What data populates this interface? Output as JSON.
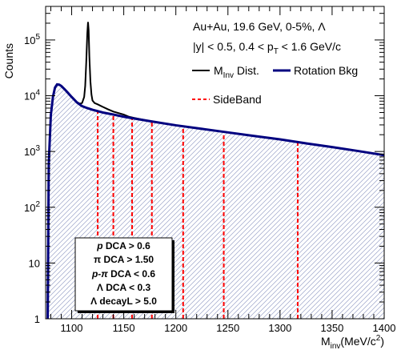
{
  "chart_data": {
    "type": "line",
    "ylabel": "Counts",
    "xlabel": {
      "main": "M",
      "sub": "inv",
      "unit_pre": "(MeV/c",
      "unit_sup": "2",
      "unit_post": ")"
    },
    "x_range": [
      1075,
      1400
    ],
    "y_range": [
      1,
      400000
    ],
    "y_scale": "log",
    "x_ticks": [
      {
        "value": 1100,
        "label": "1100"
      },
      {
        "value": 1150,
        "label": "1150"
      },
      {
        "value": 1200,
        "label": "1200"
      },
      {
        "value": 1250,
        "label": "1250"
      },
      {
        "value": 1300,
        "label": "1300"
      },
      {
        "value": 1350,
        "label": "1350"
      },
      {
        "value": 1400,
        "label": "1400"
      }
    ],
    "y_ticks": [
      {
        "value": 1,
        "base": "1",
        "exp": ""
      },
      {
        "value": 10,
        "base": "10",
        "exp": ""
      },
      {
        "value": 100,
        "base": "10",
        "exp": "2"
      },
      {
        "value": 1000,
        "base": "10",
        "exp": "3"
      },
      {
        "value": 10000,
        "base": "10",
        "exp": "4"
      },
      {
        "value": 100000,
        "base": "10",
        "exp": "5"
      }
    ],
    "info": {
      "line1": "Au+Au, 19.6 GeV, 0-5%, Λ",
      "line2_pre": "|y| < 0.5, 0.4 < p",
      "line2_sub": "T",
      "line2_post": " < 1.6 GeV/c"
    },
    "legend": [
      {
        "label_main": "M",
        "label_sub": "Inv",
        "label_post": " Dist.",
        "color": "#000000",
        "style": "solid"
      },
      {
        "label_main": "Rotation Bkg",
        "label_sub": "",
        "label_post": "",
        "color": "#00007f",
        "style": "solid"
      },
      {
        "label_main": "SideBand",
        "label_sub": "",
        "label_post": "",
        "color": "#ff0000",
        "style": "dashed"
      }
    ],
    "cuts": [
      {
        "pre": "p",
        "post": " DCA > 0.6"
      },
      {
        "pre": "π",
        "post": " DCA > 1.50"
      },
      {
        "pre": "p-π",
        "post": " DCA < 0.6"
      },
      {
        "pre": "Λ",
        "post": " DCA < 0.3"
      },
      {
        "pre": "Λ",
        "post": " decayL > 5.0"
      }
    ],
    "sideband_x": [
      1125,
      1140,
      1158,
      1177,
      1207,
      1246,
      1317
    ],
    "series": [
      {
        "key": "rotation",
        "x": [
          1077,
          1078,
          1080,
          1082,
          1084,
          1086,
          1088,
          1090,
          1093,
          1096,
          1100,
          1105,
          1110,
          1115,
          1120,
          1130,
          1140,
          1150,
          1175,
          1200,
          1225,
          1250,
          1275,
          1300,
          1325,
          1350,
          1375,
          1400
        ],
        "y": [
          1,
          600,
          4500,
          9500,
          14000,
          16000,
          15800,
          15000,
          13200,
          11500,
          9500,
          7600,
          6500,
          6000,
          5600,
          5000,
          4600,
          4200,
          3500,
          2950,
          2550,
          2200,
          1900,
          1650,
          1400,
          1200,
          1020,
          860
        ]
      },
      {
        "key": "minv",
        "x": [
          1077,
          1078,
          1080,
          1082,
          1084,
          1086,
          1088,
          1090,
          1093,
          1096,
          1100,
          1105,
          1108,
          1110,
          1112,
          1113,
          1114,
          1115,
          1115.7,
          1116.3,
          1117,
          1118,
          1119,
          1120,
          1122,
          1125,
          1130,
          1135,
          1140,
          1150,
          1155,
          1160,
          1175,
          1200,
          1225,
          1250,
          1275,
          1300,
          1325,
          1350,
          1375,
          1400
        ],
        "y": [
          1,
          600,
          4500,
          9500,
          14000,
          16000,
          15800,
          15000,
          13200,
          11500,
          9500,
          7700,
          7200,
          7400,
          9500,
          15000,
          40000,
          130000,
          210000,
          150000,
          50000,
          18000,
          10500,
          8200,
          7400,
          7000,
          6300,
          5700,
          5200,
          4600,
          4200,
          4000,
          3500,
          2950,
          2550,
          2200,
          1900,
          1650,
          1400,
          1200,
          1020,
          860
        ]
      }
    ]
  }
}
